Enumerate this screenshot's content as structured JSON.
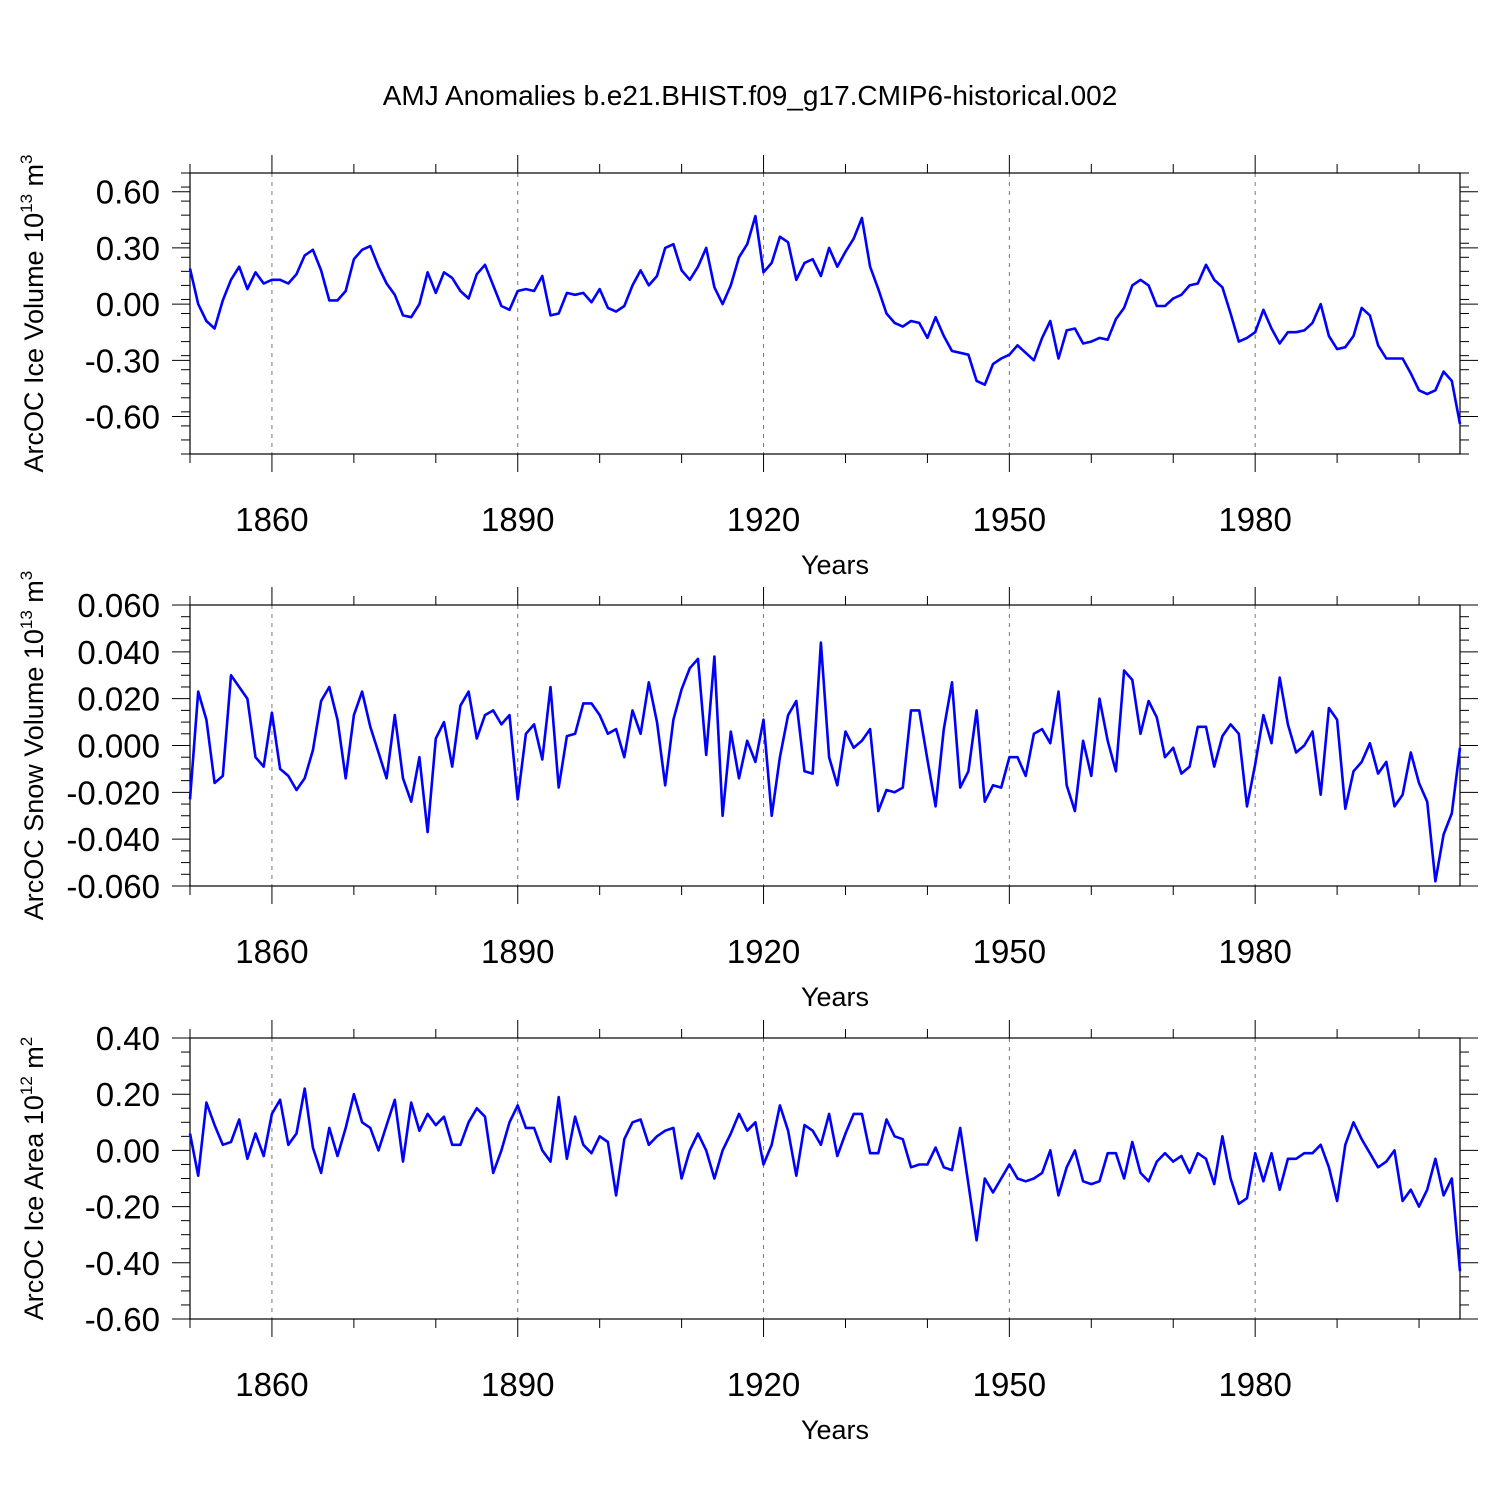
{
  "figure": {
    "title": "AMJ Anomalies b.e21.BHIST.f09_g17.CMIP6-historical.002",
    "line_color": "#0000ff"
  },
  "chart_data": [
    {
      "type": "line",
      "title": "",
      "xlabel": "Years",
      "ylabel": "ArcOC Ice Volume 10",
      "ylabel_exp": "13",
      "ylabel_unit": " m",
      "ylabel_unit_exp": "3",
      "xlim": [
        1850,
        2005
      ],
      "ylim": [
        -0.8,
        0.7
      ],
      "yticks": [
        0.6,
        0.3,
        0.0,
        -0.3,
        -0.6
      ],
      "ytick_labels": [
        "0.60",
        "0.30",
        "0.00",
        "-0.30",
        "-0.60"
      ],
      "xticks": [
        1860,
        1890,
        1920,
        1950,
        1980
      ],
      "xtick_labels": [
        "1860",
        "1890",
        "1920",
        "1950",
        "1980"
      ],
      "grid": "vertical-dashed",
      "x_start": 1850,
      "series": [
        {
          "name": "Ice Volume",
          "values": [
            0.19,
            0.0,
            -0.09,
            -0.13,
            0.02,
            0.13,
            0.2,
            0.08,
            0.17,
            0.11,
            0.13,
            0.13,
            0.11,
            0.16,
            0.26,
            0.29,
            0.18,
            0.02,
            0.02,
            0.07,
            0.24,
            0.29,
            0.31,
            0.2,
            0.11,
            0.05,
            -0.06,
            -0.07,
            0.0,
            0.17,
            0.06,
            0.17,
            0.14,
            0.07,
            0.03,
            0.16,
            0.21,
            0.1,
            -0.01,
            -0.03,
            0.07,
            0.08,
            0.07,
            0.15,
            -0.06,
            -0.05,
            0.06,
            0.05,
            0.06,
            0.01,
            0.08,
            -0.02,
            -0.04,
            -0.01,
            0.1,
            0.18,
            0.1,
            0.15,
            0.3,
            0.32,
            0.18,
            0.13,
            0.2,
            0.3,
            0.09,
            0.0,
            0.1,
            0.25,
            0.32,
            0.47,
            0.17,
            0.22,
            0.36,
            0.33,
            0.13,
            0.22,
            0.24,
            0.15,
            0.3,
            0.2,
            0.28,
            0.35,
            0.46,
            0.2,
            0.08,
            -0.05,
            -0.1,
            -0.12,
            -0.09,
            -0.1,
            -0.18,
            -0.07,
            -0.17,
            -0.25,
            -0.26,
            -0.27,
            -0.41,
            -0.43,
            -0.32,
            -0.29,
            -0.27,
            -0.22,
            -0.26,
            -0.3,
            -0.18,
            -0.09,
            -0.29,
            -0.14,
            -0.13,
            -0.21,
            -0.2,
            -0.18,
            -0.19,
            -0.08,
            -0.02,
            0.1,
            0.13,
            0.1,
            -0.01,
            -0.01,
            0.03,
            0.05,
            0.1,
            0.11,
            0.21,
            0.13,
            0.09,
            -0.05,
            -0.2,
            -0.18,
            -0.15,
            -0.03,
            -0.13,
            -0.21,
            -0.15,
            -0.15,
            -0.14,
            -0.1,
            0.0,
            -0.17,
            -0.24,
            -0.23,
            -0.17,
            -0.02,
            -0.06,
            -0.22,
            -0.29,
            -0.29,
            -0.29,
            -0.37,
            -0.46,
            -0.48,
            -0.46,
            -0.36,
            -0.41,
            -0.64
          ]
        }
      ]
    },
    {
      "type": "line",
      "title": "",
      "xlabel": "Years",
      "ylabel": "ArcOC Snow Volume 10",
      "ylabel_exp": "13",
      "ylabel_unit": " m",
      "ylabel_unit_exp": "3",
      "xlim": [
        1850,
        2005
      ],
      "ylim": [
        -0.06,
        0.06
      ],
      "yticks": [
        0.06,
        0.04,
        0.02,
        0.0,
        -0.02,
        -0.04,
        -0.06
      ],
      "ytick_labels": [
        "0.060",
        "0.040",
        "0.020",
        "0.000",
        "-0.020",
        "-0.040",
        "-0.060"
      ],
      "xticks": [
        1860,
        1890,
        1920,
        1950,
        1980
      ],
      "xtick_labels": [
        "1860",
        "1890",
        "1920",
        "1950",
        "1980"
      ],
      "grid": "vertical-dashed",
      "x_start": 1850,
      "series": [
        {
          "name": "Snow Volume",
          "values": [
            -0.023,
            0.023,
            0.011,
            -0.016,
            -0.013,
            0.03,
            0.025,
            0.02,
            -0.005,
            -0.009,
            0.014,
            -0.01,
            -0.013,
            -0.019,
            -0.014,
            -0.002,
            0.019,
            0.025,
            0.011,
            -0.014,
            0.013,
            0.023,
            0.008,
            -0.003,
            -0.014,
            0.013,
            -0.014,
            -0.024,
            -0.005,
            -0.037,
            0.003,
            0.01,
            -0.009,
            0.017,
            0.023,
            0.003,
            0.013,
            0.015,
            0.009,
            0.013,
            -0.023,
            0.005,
            0.009,
            -0.006,
            0.025,
            -0.018,
            0.004,
            0.005,
            0.018,
            0.018,
            0.013,
            0.005,
            0.007,
            -0.005,
            0.015,
            0.005,
            0.027,
            0.01,
            -0.017,
            0.011,
            0.024,
            0.033,
            0.037,
            -0.004,
            0.038,
            -0.03,
            0.006,
            -0.014,
            0.002,
            -0.007,
            0.011,
            -0.03,
            -0.005,
            0.013,
            0.019,
            -0.011,
            -0.012,
            0.044,
            -0.005,
            -0.017,
            0.006,
            -0.001,
            0.002,
            0.007,
            -0.028,
            -0.019,
            -0.02,
            -0.018,
            0.015,
            0.015,
            -0.006,
            -0.026,
            0.007,
            0.027,
            -0.018,
            -0.011,
            0.015,
            -0.024,
            -0.017,
            -0.018,
            -0.005,
            -0.005,
            -0.013,
            0.005,
            0.007,
            0.001,
            0.023,
            -0.017,
            -0.028,
            0.002,
            -0.013,
            0.02,
            0.002,
            -0.011,
            0.032,
            0.028,
            0.005,
            0.019,
            0.012,
            -0.005,
            -0.001,
            -0.012,
            -0.009,
            0.008,
            0.008,
            -0.009,
            0.004,
            0.009,
            0.005,
            -0.026,
            -0.008,
            0.013,
            0.001,
            0.029,
            0.009,
            -0.003,
            0.0,
            0.006,
            -0.021,
            0.016,
            0.011,
            -0.027,
            -0.011,
            -0.007,
            0.001,
            -0.012,
            -0.007,
            -0.026,
            -0.021,
            -0.003,
            -0.016,
            -0.024,
            -0.058,
            -0.038,
            -0.029,
            -0.001
          ]
        }
      ]
    },
    {
      "type": "line",
      "title": "",
      "xlabel": "Years",
      "ylabel": "ArcOC Ice Area 10",
      "ylabel_exp": "12",
      "ylabel_unit": " m",
      "ylabel_unit_exp": "2",
      "xlim": [
        1850,
        2005
      ],
      "ylim": [
        -0.6,
        0.4
      ],
      "yticks": [
        0.4,
        0.2,
        0.0,
        -0.2,
        -0.4,
        -0.6
      ],
      "ytick_labels": [
        "0.40",
        "0.20",
        "0.00",
        "-0.20",
        "-0.40",
        "-0.60"
      ],
      "xticks": [
        1860,
        1890,
        1920,
        1950,
        1980
      ],
      "xtick_labels": [
        "1860",
        "1890",
        "1920",
        "1950",
        "1980"
      ],
      "grid": "vertical-dashed",
      "x_start": 1850,
      "series": [
        {
          "name": "Ice Area",
          "values": [
            0.06,
            -0.09,
            0.17,
            0.09,
            0.02,
            0.03,
            0.11,
            -0.03,
            0.06,
            -0.02,
            0.13,
            0.18,
            0.02,
            0.06,
            0.22,
            0.01,
            -0.08,
            0.08,
            -0.02,
            0.08,
            0.2,
            0.1,
            0.08,
            0.0,
            0.09,
            0.18,
            -0.04,
            0.17,
            0.07,
            0.13,
            0.09,
            0.12,
            0.02,
            0.02,
            0.1,
            0.15,
            0.12,
            -0.08,
            0.0,
            0.1,
            0.16,
            0.08,
            0.08,
            0.0,
            -0.04,
            0.19,
            -0.03,
            0.12,
            0.02,
            -0.01,
            0.05,
            0.03,
            -0.16,
            0.04,
            0.1,
            0.11,
            0.02,
            0.05,
            0.07,
            0.08,
            -0.1,
            0.0,
            0.06,
            0.0,
            -0.1,
            0.0,
            0.06,
            0.13,
            0.07,
            0.1,
            -0.05,
            0.02,
            0.16,
            0.07,
            -0.09,
            0.09,
            0.07,
            0.02,
            0.13,
            -0.02,
            0.06,
            0.13,
            0.13,
            -0.01,
            -0.01,
            0.11,
            0.05,
            0.04,
            -0.06,
            -0.05,
            -0.05,
            0.01,
            -0.06,
            -0.07,
            0.08,
            -0.12,
            -0.32,
            -0.1,
            -0.15,
            -0.1,
            -0.05,
            -0.1,
            -0.11,
            -0.1,
            -0.08,
            0.0,
            -0.16,
            -0.06,
            0.0,
            -0.11,
            -0.12,
            -0.11,
            -0.01,
            -0.01,
            -0.1,
            0.03,
            -0.08,
            -0.11,
            -0.04,
            -0.01,
            -0.04,
            -0.02,
            -0.08,
            -0.01,
            -0.03,
            -0.12,
            0.05,
            -0.1,
            -0.19,
            -0.17,
            -0.01,
            -0.11,
            -0.01,
            -0.14,
            -0.03,
            -0.03,
            -0.01,
            -0.01,
            0.02,
            -0.06,
            -0.18,
            0.02,
            0.1,
            0.04,
            -0.01,
            -0.06,
            -0.04,
            0.0,
            -0.18,
            -0.14,
            -0.2,
            -0.14,
            -0.03,
            -0.16,
            -0.1,
            -0.43
          ]
        }
      ]
    }
  ]
}
